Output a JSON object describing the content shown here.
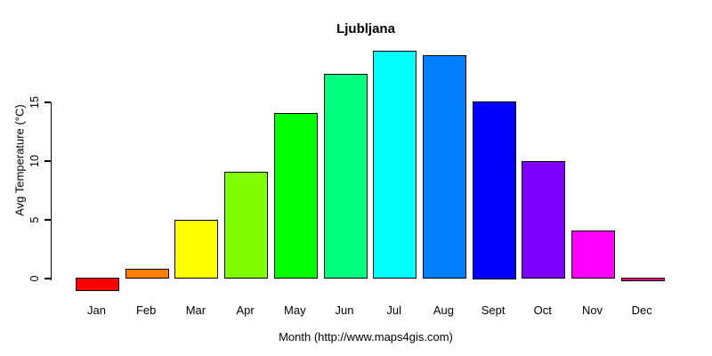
{
  "chart_data": {
    "type": "bar",
    "title": "Ljubljana",
    "xlabel": "Month (http://www.maps4gis.com)",
    "ylabel": "Avg Temperature (°C)",
    "categories": [
      "Jan",
      "Feb",
      "Mar",
      "Apr",
      "May",
      "Jun",
      "Jul",
      "Aug",
      "Sept",
      "Oct",
      "Nov",
      "Dec"
    ],
    "values": [
      -1.0,
      0.7,
      4.9,
      9.0,
      14.0,
      17.3,
      19.3,
      18.9,
      15.0,
      9.9,
      4.0,
      -0.2
    ],
    "bar_colors": [
      "#FF0000",
      "#FF8000",
      "#FFFF00",
      "#80FF00",
      "#00FF00",
      "#00FF80",
      "#00FFFF",
      "#0080FF",
      "#0000FF",
      "#8000FF",
      "#FF00FF",
      "#FF0080"
    ],
    "bar_border_color": "#000000",
    "yticks": [
      0,
      5,
      10,
      15
    ],
    "ylim": [
      -1.5,
      19.5
    ],
    "grid": false,
    "legend_position": "none",
    "background_color": "#FFFFFF",
    "text_color": "#000000"
  }
}
